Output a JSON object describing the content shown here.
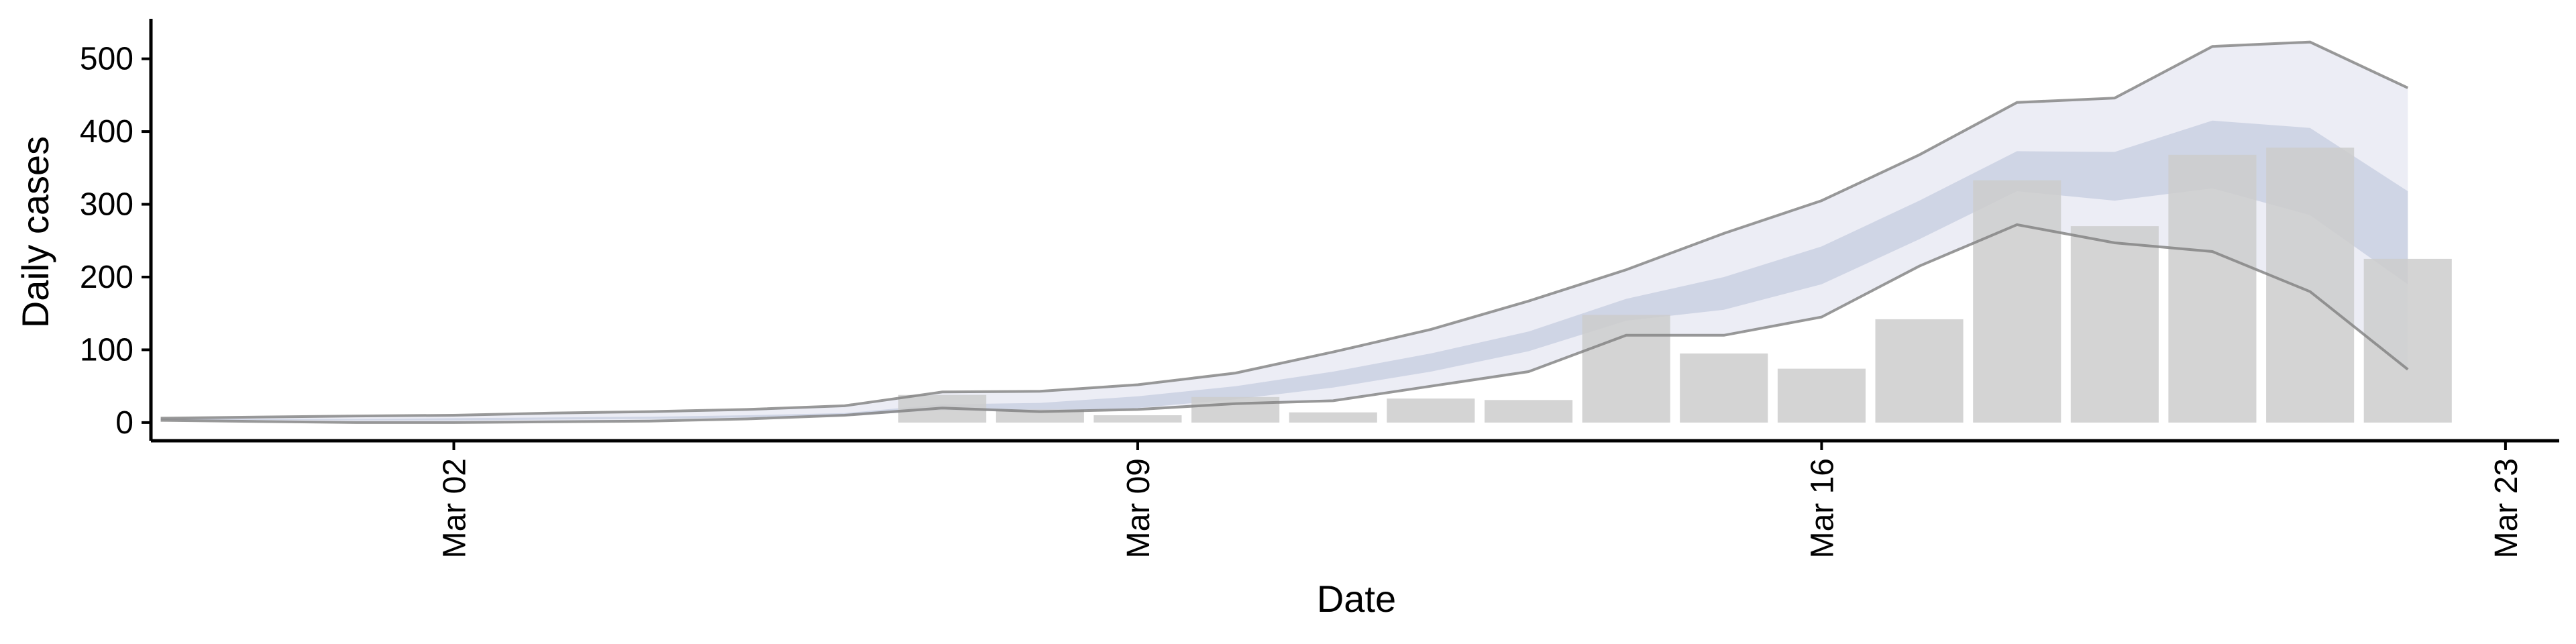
{
  "chart_data": {
    "type": "bar",
    "title": "",
    "xlabel": "Date",
    "ylabel": "Daily cases",
    "x_ticks": [
      {
        "label": "Mar 02",
        "day": 2
      },
      {
        "label": "Mar 09",
        "day": 9
      },
      {
        "label": "Mar 16",
        "day": 16
      },
      {
        "label": "Mar 23",
        "day": 23
      }
    ],
    "y_ticks": [
      0,
      100,
      200,
      300,
      400,
      500
    ],
    "ylim": [
      -25,
      555
    ],
    "xlim_days": [
      27.9,
      23.55
    ],
    "grid": false,
    "legend": "none",
    "colors": {
      "bars": "#cccccc",
      "band_outer": "#e9eaf3",
      "band_inner": "#ccd1e3",
      "bound_lines": "#808080",
      "axis": "#000000"
    },
    "bars": {
      "dates": [
        "2020-03-07",
        "2020-03-08",
        "2020-03-09",
        "2020-03-10",
        "2020-03-11",
        "2020-03-12",
        "2020-03-13",
        "2020-03-14",
        "2020-03-15",
        "2020-03-16",
        "2020-03-17",
        "2020-03-18",
        "2020-03-19",
        "2020-03-20",
        "2020-03-21",
        "2020-03-22"
      ],
      "values": [
        38,
        18,
        10,
        35,
        14,
        33,
        31,
        148,
        95,
        74,
        142,
        333,
        270,
        368,
        378,
        225
      ]
    },
    "bands": {
      "dates": [
        "2020-02-28",
        "2020-03-01",
        "2020-03-02",
        "2020-03-03",
        "2020-03-04",
        "2020-03-05",
        "2020-03-06",
        "2020-03-07",
        "2020-03-08",
        "2020-03-09",
        "2020-03-10",
        "2020-03-11",
        "2020-03-12",
        "2020-03-13",
        "2020-03-14",
        "2020-03-15",
        "2020-03-16",
        "2020-03-17",
        "2020-03-18",
        "2020-03-19",
        "2020-03-20",
        "2020-03-21",
        "2020-03-22"
      ],
      "outer_upper": [
        6,
        9,
        10,
        13,
        15,
        18,
        23,
        42,
        43,
        52,
        68,
        97,
        128,
        167,
        210,
        260,
        305,
        368,
        440,
        446,
        517,
        523,
        460
      ],
      "outer_lower": [
        3,
        0,
        0,
        1,
        2,
        5,
        10,
        20,
        15,
        18,
        26,
        30,
        50,
        70,
        120,
        120,
        145,
        215,
        272,
        247,
        235,
        180,
        73
      ],
      "inner_upper": [
        5,
        5,
        6,
        7,
        8,
        10,
        13,
        25,
        27,
        36,
        50,
        70,
        95,
        125,
        170,
        200,
        242,
        305,
        373,
        372,
        415,
        405,
        318
      ],
      "inner_lower": [
        4,
        3,
        3,
        4,
        5,
        7,
        9,
        17,
        15,
        20,
        32,
        48,
        70,
        98,
        140,
        155,
        190,
        252,
        318,
        305,
        322,
        285,
        190
      ]
    }
  }
}
